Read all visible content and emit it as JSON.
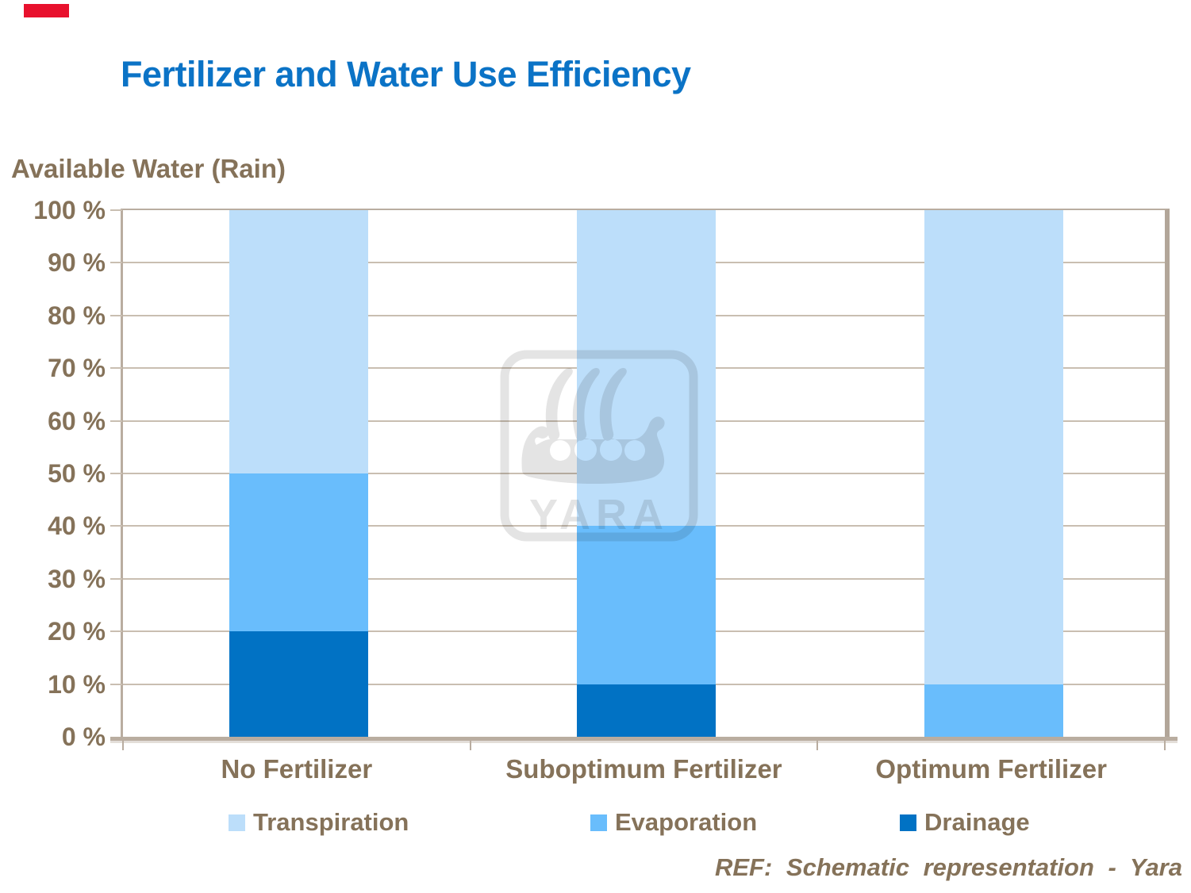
{
  "page": {
    "title": "Fertilizer and Water Use Efficiency",
    "footer": "REF: Schematic representation - Yara",
    "colors": {
      "title": "#0B73C6",
      "text": "#857259",
      "axis": "#B9ADA0",
      "grid": "#C9BEB1",
      "marker_red": "#E8112D"
    }
  },
  "watermark": {
    "text": "YARA"
  },
  "chart_data": {
    "type": "bar",
    "stacked": true,
    "title": "Available Water (Rain)",
    "categories": [
      "No Fertilizer",
      "Suboptimum Fertilizer",
      "Optimum Fertilizer"
    ],
    "series": [
      {
        "name": "Drainage",
        "color": "#0172C4",
        "values": [
          20,
          10,
          0
        ]
      },
      {
        "name": "Evaporation",
        "color": "#69BDFC",
        "values": [
          30,
          30,
          10
        ]
      },
      {
        "name": "Transpiration",
        "color": "#BCDEFA",
        "values": [
          50,
          60,
          90
        ]
      }
    ],
    "legend": [
      "Transpiration",
      "Evaporation",
      "Drainage"
    ],
    "legend_position": "bottom",
    "ylim": [
      0,
      100
    ],
    "y_tick_labels": [
      "0 %",
      "10 %",
      "20 %",
      "30 %",
      "40 %",
      "50 %",
      "60 %",
      "70 %",
      "80 %",
      "90 %",
      "100 %"
    ],
    "grid": true
  }
}
